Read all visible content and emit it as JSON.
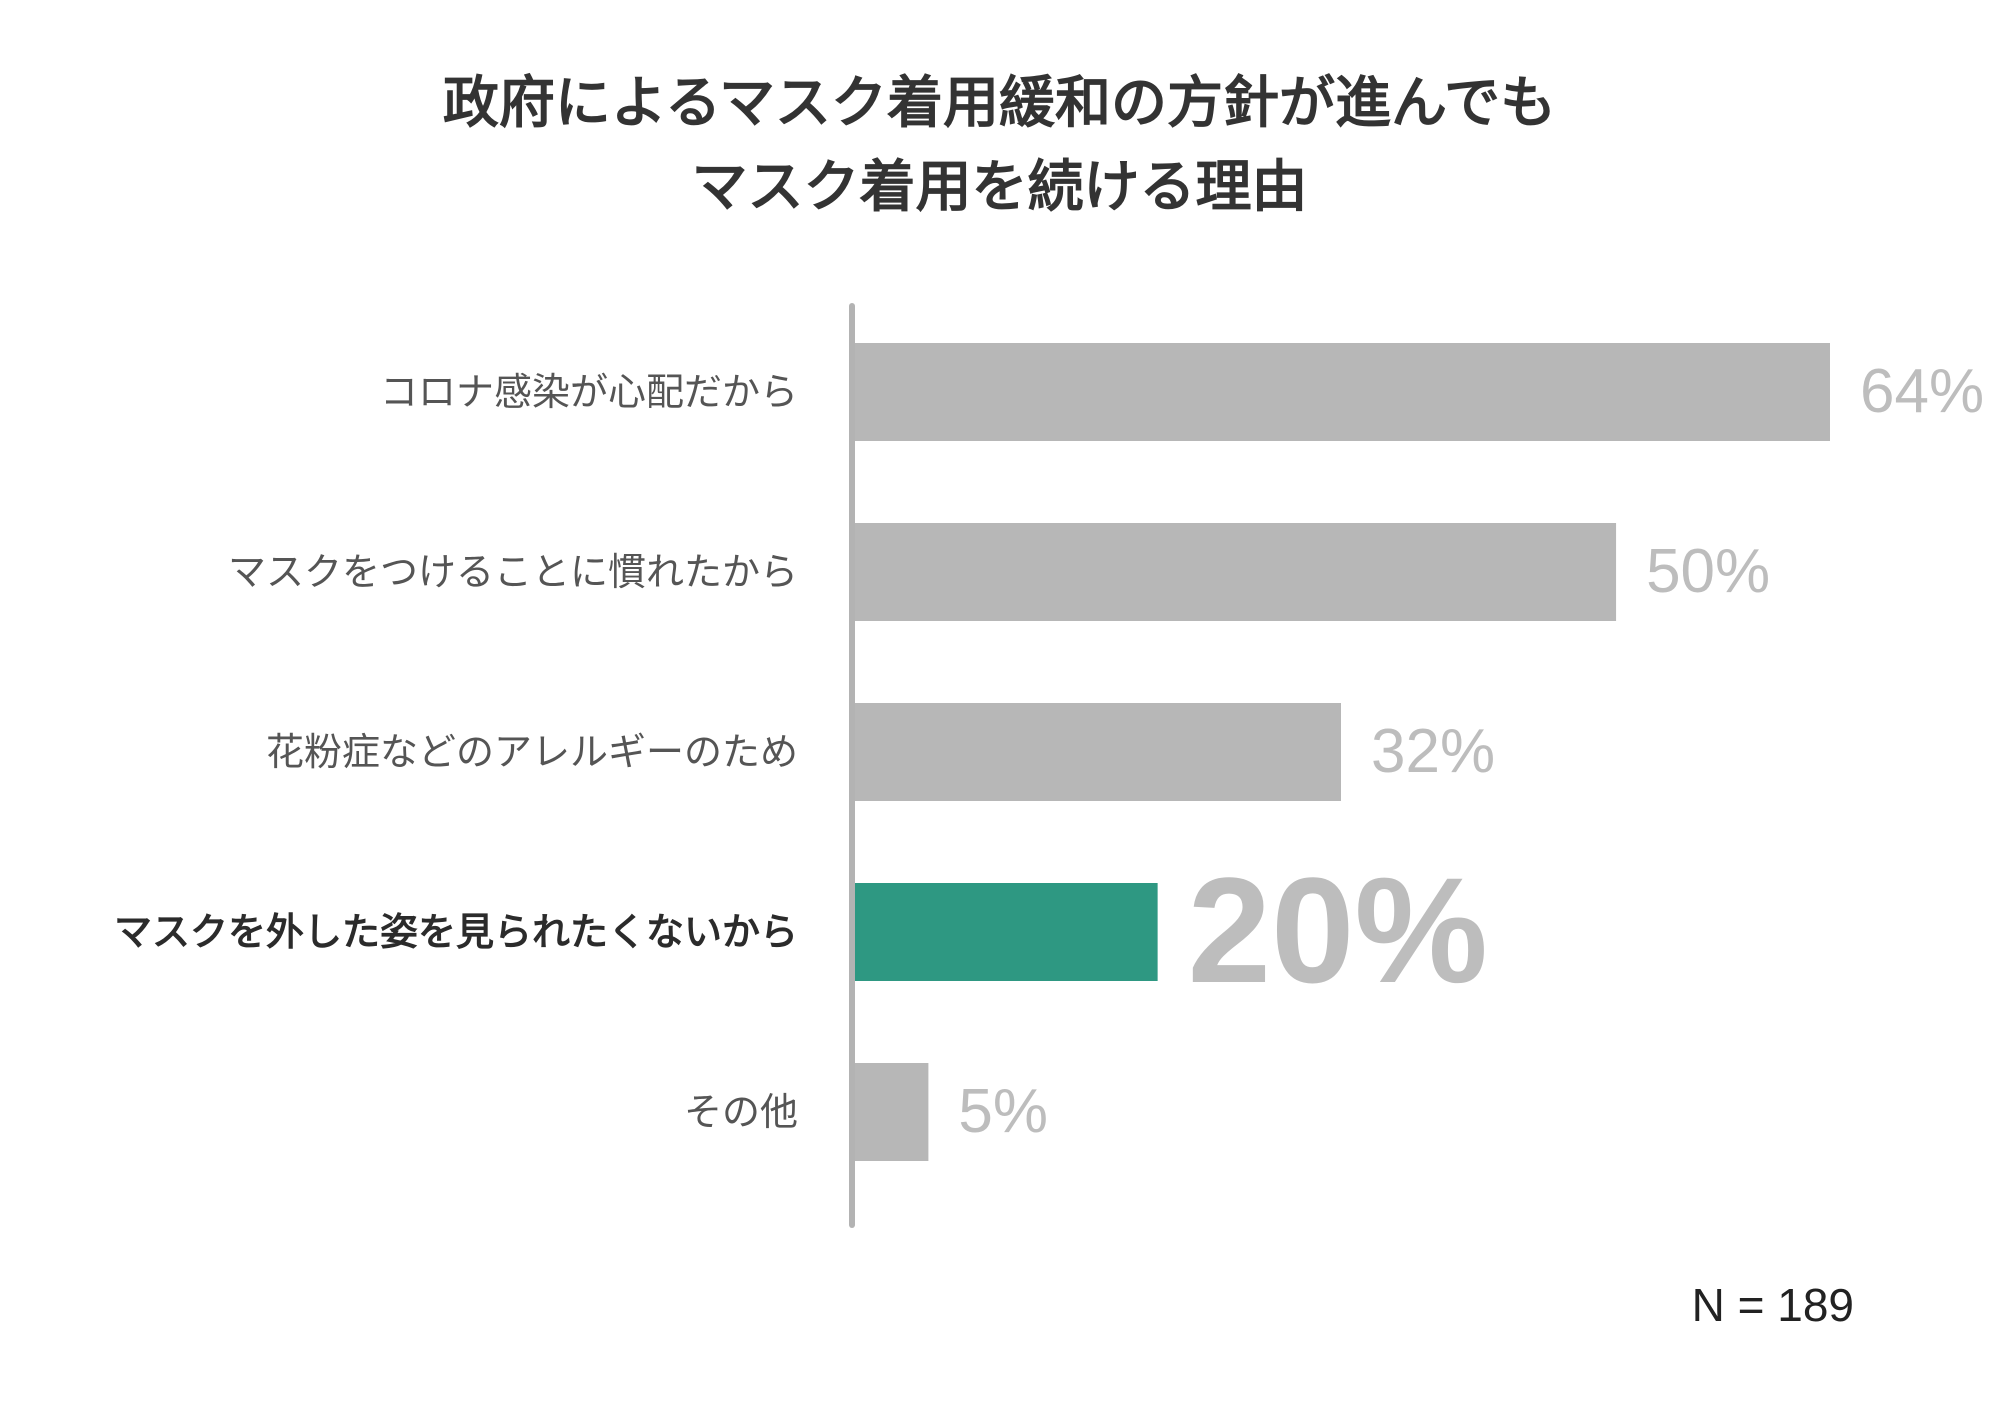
{
  "chart_data": {
    "type": "bar",
    "orientation": "horizontal",
    "title_lines": [
      "政府によるマスク着用緩和の方針が進んでも",
      "マスク着用を続ける理由"
    ],
    "categories": [
      "コロナ感染が心配だから",
      "マスクをつけることに慣れたから",
      "花粉症などのアレルギーのため",
      "マスクを外した姿を見られたくないから",
      "その他"
    ],
    "values": [
      64,
      50,
      32,
      20,
      5
    ],
    "value_labels": [
      "64%",
      "50%",
      "32%",
      "20%",
      "5%"
    ],
    "highlight_index": 3,
    "xlim": [
      0,
      64
    ],
    "grid": false,
    "legend": "none",
    "colors": {
      "bar": "#b7b7b7",
      "highlight": "#2e9882",
      "value_text": "#bdbdbd",
      "axis": "#b3b3b3",
      "title": "#333333",
      "label": "#555555",
      "highlight_label": "#2b2b2b"
    }
  },
  "note": "N = 189"
}
